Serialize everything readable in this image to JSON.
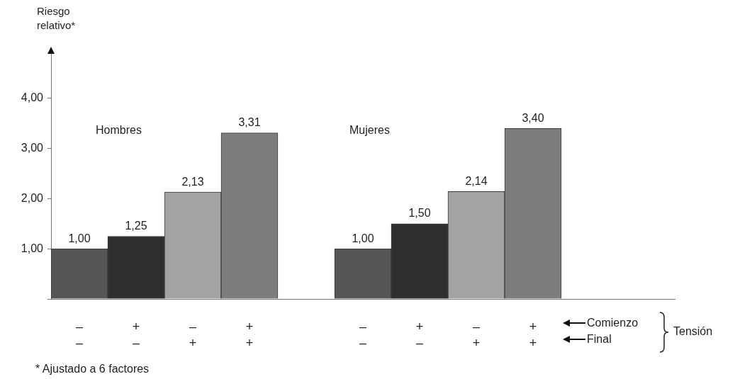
{
  "chart_data": {
    "type": "bar",
    "ylabel": "Riesgo relativo*",
    "categories": [
      "–\n–",
      "+\n–",
      "–\n+",
      "+\n+",
      null,
      "–\n–",
      "+\n–",
      "–\n+",
      "+\n+",
      null,
      null
    ],
    "values": [
      1.0,
      1.25,
      2.13,
      3.31,
      null,
      1.0,
      1.5,
      2.14,
      3.4,
      null,
      null
    ],
    "colors": [
      "#555555",
      "#2f2f2f",
      "#a3a3a3",
      "#7c7c7c",
      "#7c7c7c",
      "#555555",
      "#2f2f2f",
      "#a3a3a3",
      "#7c7c7c",
      "#7c7c7c",
      "#7c7c7c"
    ],
    "value_labels": [
      "1,00",
      "1,25",
      "2,13",
      "3,31",
      null,
      "1,00",
      "1,50",
      "2,14",
      "3,40",
      null,
      null
    ],
    "ylim": [
      0,
      4.9
    ],
    "yticks": [
      {
        "value": 0,
        "label": null
      },
      {
        "value": 1,
        "label": "1,00"
      },
      {
        "value": 2,
        "label": "2,00"
      },
      {
        "value": 3,
        "label": "3,00"
      },
      {
        "value": 4,
        "label": "4,00"
      }
    ],
    "grid": false,
    "legend": false,
    "annotations": [
      "Hombres",
      "Mujeres",
      "Comienzo",
      "Final",
      "Tensión",
      "* Ajustado a 6 factores"
    ]
  }
}
